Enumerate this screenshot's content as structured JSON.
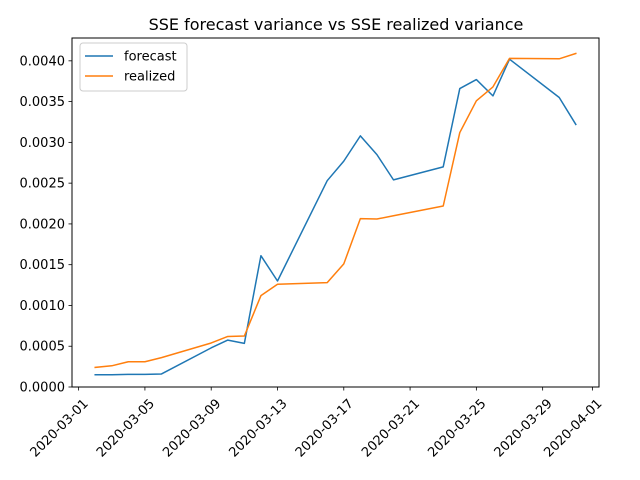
{
  "chart_data": {
    "type": "line",
    "title": "SSE forecast variance vs SSE realized variance",
    "xlabel": "",
    "ylabel": "",
    "x_range": [
      "2020-03-01",
      "2020-04-01"
    ],
    "ylim": [
      0.0,
      0.00428
    ],
    "grid": false,
    "legend_position": "top-left",
    "x_ticks": [
      "2020-03-01",
      "2020-03-05",
      "2020-03-09",
      "2020-03-13",
      "2020-03-17",
      "2020-03-21",
      "2020-03-25",
      "2020-03-29",
      "2020-04-01"
    ],
    "y_ticks": [
      "0.0000",
      "0.0005",
      "0.0010",
      "0.0015",
      "0.0020",
      "0.0025",
      "0.0030",
      "0.0035",
      "0.0040"
    ],
    "series": [
      {
        "name": "forecast",
        "color": "#1f77b4",
        "points": [
          {
            "x": "2020-03-02",
            "y": 0.00015
          },
          {
            "x": "2020-03-03",
            "y": 0.00015
          },
          {
            "x": "2020-03-04",
            "y": 0.000155
          },
          {
            "x": "2020-03-05",
            "y": 0.000155
          },
          {
            "x": "2020-03-06",
            "y": 0.00016
          },
          {
            "x": "2020-03-09",
            "y": 0.00048
          },
          {
            "x": "2020-03-10",
            "y": 0.000575
          },
          {
            "x": "2020-03-11",
            "y": 0.000535
          },
          {
            "x": "2020-03-12",
            "y": 0.00161
          },
          {
            "x": "2020-03-13",
            "y": 0.0013
          },
          {
            "x": "2020-03-16",
            "y": 0.00253
          },
          {
            "x": "2020-03-17",
            "y": 0.00277
          },
          {
            "x": "2020-03-18",
            "y": 0.00308
          },
          {
            "x": "2020-03-19",
            "y": 0.00285
          },
          {
            "x": "2020-03-20",
            "y": 0.00254
          },
          {
            "x": "2020-03-23",
            "y": 0.0027
          },
          {
            "x": "2020-03-24",
            "y": 0.00366
          },
          {
            "x": "2020-03-25",
            "y": 0.00377
          },
          {
            "x": "2020-03-26",
            "y": 0.00357
          },
          {
            "x": "2020-03-27",
            "y": 0.00402
          },
          {
            "x": "2020-03-30",
            "y": 0.00355
          },
          {
            "x": "2020-03-31",
            "y": 0.00322
          }
        ]
      },
      {
        "name": "realized",
        "color": "#ff7f0e",
        "points": [
          {
            "x": "2020-03-02",
            "y": 0.00024
          },
          {
            "x": "2020-03-03",
            "y": 0.00026
          },
          {
            "x": "2020-03-04",
            "y": 0.00031
          },
          {
            "x": "2020-03-05",
            "y": 0.00031
          },
          {
            "x": "2020-03-06",
            "y": 0.00036
          },
          {
            "x": "2020-03-09",
            "y": 0.00054
          },
          {
            "x": "2020-03-10",
            "y": 0.00062
          },
          {
            "x": "2020-03-11",
            "y": 0.000625
          },
          {
            "x": "2020-03-12",
            "y": 0.00112
          },
          {
            "x": "2020-03-13",
            "y": 0.00126
          },
          {
            "x": "2020-03-16",
            "y": 0.00128
          },
          {
            "x": "2020-03-17",
            "y": 0.00151
          },
          {
            "x": "2020-03-18",
            "y": 0.002065
          },
          {
            "x": "2020-03-19",
            "y": 0.00206
          },
          {
            "x": "2020-03-20",
            "y": 0.0021
          },
          {
            "x": "2020-03-23",
            "y": 0.00222
          },
          {
            "x": "2020-03-24",
            "y": 0.00312
          },
          {
            "x": "2020-03-25",
            "y": 0.00351
          },
          {
            "x": "2020-03-26",
            "y": 0.00368
          },
          {
            "x": "2020-03-27",
            "y": 0.00403
          },
          {
            "x": "2020-03-30",
            "y": 0.004025
          },
          {
            "x": "2020-03-31",
            "y": 0.00409
          }
        ]
      }
    ]
  }
}
